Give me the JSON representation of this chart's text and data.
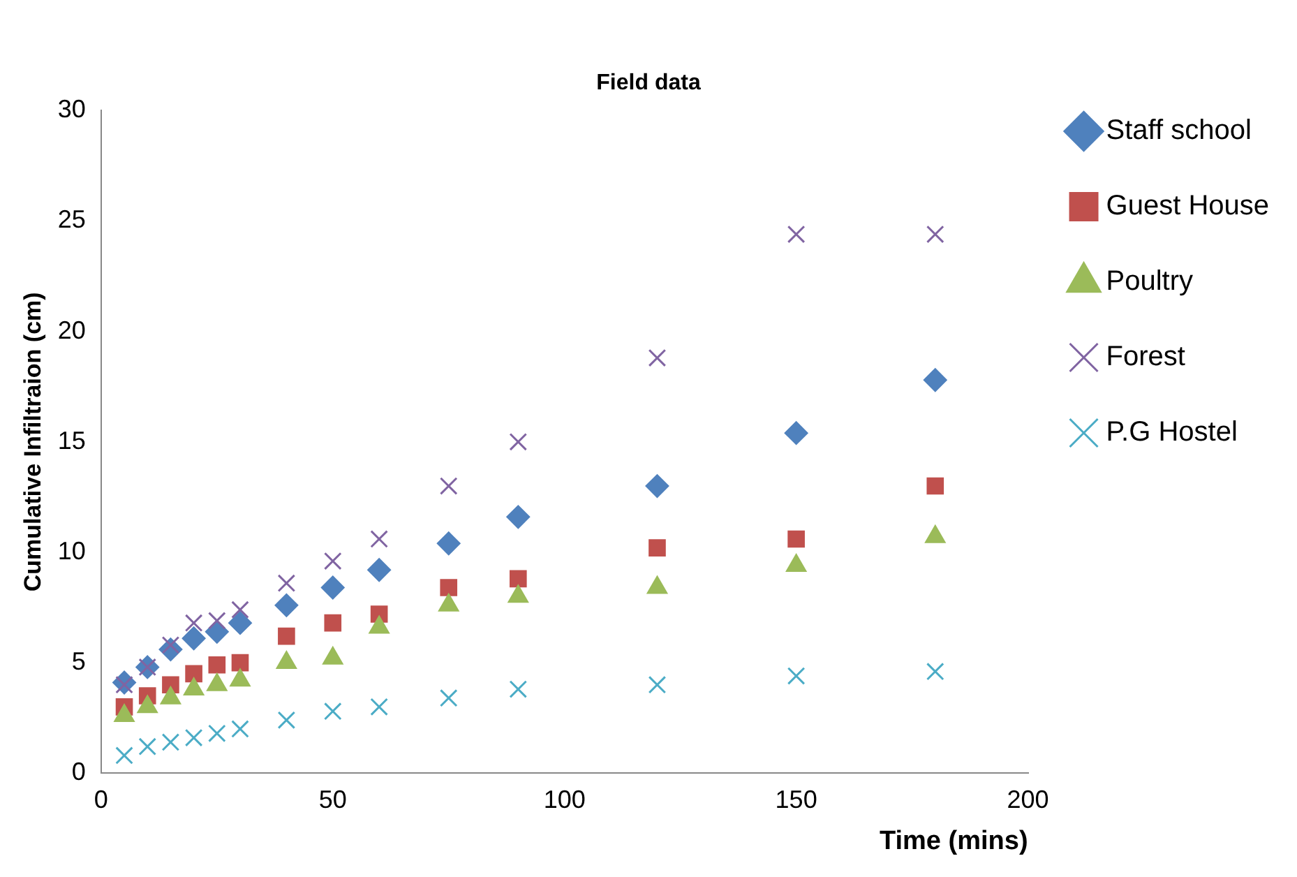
{
  "chart_data": {
    "type": "scatter",
    "title": "Field data",
    "xlabel": "Time (mins)",
    "ylabel": "Cumulative Infiltraion (cm)",
    "x": [
      5,
      10,
      15,
      20,
      25,
      30,
      40,
      50,
      60,
      75,
      90,
      120,
      150,
      180
    ],
    "xlim": [
      0,
      200
    ],
    "xticks": [
      0,
      50,
      100,
      150,
      200
    ],
    "ylim": [
      0,
      30
    ],
    "yticks": [
      0,
      5,
      10,
      15,
      20,
      25,
      30
    ],
    "grid": false,
    "legend": "right",
    "series": [
      {
        "name": "Staff school",
        "color": "#4f81bd",
        "marker": "diamond",
        "values": [
          4.1,
          4.8,
          5.6,
          6.1,
          6.4,
          6.8,
          7.6,
          8.4,
          9.2,
          10.4,
          11.6,
          13.0,
          15.4,
          17.8
        ]
      },
      {
        "name": "Guest House",
        "color": "#c0504d",
        "marker": "square",
        "values": [
          3.0,
          3.5,
          4.0,
          4.5,
          4.9,
          5.0,
          6.2,
          6.8,
          7.2,
          8.4,
          8.8,
          10.2,
          10.6,
          13.0
        ]
      },
      {
        "name": "Poultry",
        "color": "#9bbb59",
        "marker": "triangle",
        "values": [
          2.6,
          3.0,
          3.4,
          3.8,
          4.0,
          4.2,
          5.0,
          5.2,
          6.6,
          7.6,
          8.0,
          8.4,
          9.4,
          10.7
        ]
      },
      {
        "name": "Forest",
        "color": "#8064a2",
        "marker": "cross",
        "values": [
          4.0,
          4.8,
          5.8,
          6.8,
          6.9,
          7.4,
          8.6,
          9.6,
          10.6,
          13.0,
          15.0,
          18.8,
          24.4,
          24.4
        ]
      },
      {
        "name": "P.G Hostel",
        "color": "#4bacc6",
        "marker": "cross",
        "values": [
          0.8,
          1.2,
          1.4,
          1.6,
          1.8,
          2.0,
          2.4,
          2.8,
          3.0,
          3.4,
          3.8,
          4.0,
          4.4,
          4.6
        ]
      }
    ]
  }
}
